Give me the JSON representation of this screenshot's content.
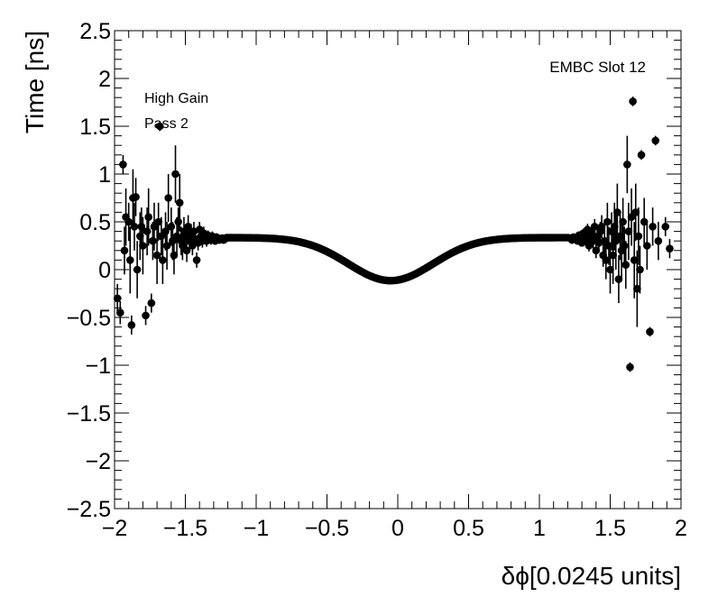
{
  "chart_data": {
    "type": "scatter",
    "xlabel": "δϕ[0.0245 units]",
    "ylabel": "Time [ns]",
    "xlim": [
      -2,
      2
    ],
    "ylim": [
      -2.5,
      2.5
    ],
    "x_ticks": [
      "−2",
      "−1.5",
      "−1",
      "−0.5",
      "0",
      "0.5",
      "1",
      "1.5",
      "2"
    ],
    "y_ticks": [
      "−2.5",
      "−2",
      "−1.5",
      "−1",
      "−0.5",
      "0",
      "0.5",
      "1",
      "1.5",
      "2",
      "2.5"
    ],
    "annotations": {
      "left_line1": "High Gain",
      "left_line2": "Pass 2",
      "right": "EMBC Slot 12"
    },
    "grid": false,
    "marker_color": "#000000",
    "points": [
      [
        -1.98,
        -0.3,
        0.15
      ],
      [
        -1.96,
        -0.45,
        0.12
      ],
      [
        -1.94,
        1.1,
        0.1
      ],
      [
        -1.93,
        0.2,
        0.25
      ],
      [
        -1.92,
        0.55,
        0.3
      ],
      [
        -1.9,
        0.5,
        0.2
      ],
      [
        -1.89,
        0.1,
        0.35
      ],
      [
        -1.88,
        -0.58,
        0.1
      ],
      [
        -1.87,
        0.75,
        0.3
      ],
      [
        -1.86,
        0.45,
        0.25
      ],
      [
        -1.85,
        0.76,
        0.2
      ],
      [
        -1.84,
        0.0,
        0.3
      ],
      [
        -1.82,
        0.35,
        0.25
      ],
      [
        -1.81,
        0.45,
        0.2
      ],
      [
        -1.8,
        0.25,
        0.3
      ],
      [
        -1.78,
        -0.48,
        0.1
      ],
      [
        -1.77,
        0.4,
        0.25
      ],
      [
        -1.76,
        0.55,
        0.3
      ],
      [
        -1.74,
        -0.35,
        0.1
      ],
      [
        -1.73,
        0.3,
        0.2
      ],
      [
        -1.72,
        0.45,
        0.25
      ],
      [
        -1.7,
        0.15,
        0.3
      ],
      [
        -1.69,
        0.5,
        0.2
      ],
      [
        -1.68,
        1.5,
        0.05
      ],
      [
        -1.67,
        0.35,
        0.2
      ],
      [
        -1.66,
        0.1,
        0.25
      ],
      [
        -1.64,
        0.4,
        0.2
      ],
      [
        -1.63,
        0.25,
        0.25
      ],
      [
        -1.62,
        0.75,
        0.25
      ],
      [
        -1.6,
        0.45,
        0.2
      ],
      [
        -1.59,
        0.3,
        0.2
      ],
      [
        -1.58,
        0.15,
        0.2
      ],
      [
        -1.57,
        1.0,
        0.3
      ],
      [
        -1.56,
        0.35,
        0.2
      ],
      [
        -1.55,
        0.5,
        0.15
      ],
      [
        -1.54,
        0.7,
        0.3
      ],
      [
        -1.53,
        0.3,
        0.15
      ],
      [
        -1.52,
        0.25,
        0.15
      ],
      [
        -1.51,
        0.4,
        0.15
      ],
      [
        -1.5,
        0.35,
        0.12
      ],
      [
        -1.49,
        0.2,
        0.12
      ],
      [
        -1.48,
        0.45,
        0.12
      ],
      [
        -1.47,
        0.3,
        0.1
      ],
      [
        -1.46,
        0.38,
        0.1
      ],
      [
        -1.45,
        0.25,
        0.1
      ],
      [
        -1.44,
        0.4,
        0.1
      ],
      [
        -1.43,
        0.32,
        0.08
      ],
      [
        -1.42,
        0.1,
        0.08
      ],
      [
        -1.41,
        0.28,
        0.08
      ],
      [
        -1.4,
        0.42,
        0.08
      ],
      [
        -1.39,
        0.35,
        0.08
      ],
      [
        -1.38,
        0.3,
        0.07
      ],
      [
        -1.37,
        0.38,
        0.07
      ],
      [
        -1.36,
        0.33,
        0.06
      ],
      [
        -1.35,
        0.3,
        0.06
      ],
      [
        -1.34,
        0.36,
        0.05
      ],
      [
        -1.33,
        0.34,
        0.05
      ],
      [
        -1.32,
        0.31,
        0.05
      ],
      [
        -1.31,
        0.35,
        0.05
      ],
      [
        -1.3,
        0.32,
        0.04
      ],
      [
        -1.29,
        0.3,
        0.04
      ],
      [
        -1.28,
        0.34,
        0.04
      ],
      [
        -1.27,
        0.33,
        0.03
      ],
      [
        -1.26,
        0.31,
        0.03
      ],
      [
        -1.25,
        0.32,
        0.03
      ],
      [
        -1.24,
        0.33,
        0.02
      ],
      [
        -1.23,
        0.31,
        0.02
      ],
      [
        -1.22,
        0.32,
        0.02
      ],
      [
        1.22,
        0.33,
        0.02
      ],
      [
        1.23,
        0.31,
        0.02
      ],
      [
        1.24,
        0.34,
        0.02
      ],
      [
        1.25,
        0.32,
        0.03
      ],
      [
        1.26,
        0.33,
        0.03
      ],
      [
        1.27,
        0.3,
        0.03
      ],
      [
        1.28,
        0.36,
        0.04
      ],
      [
        1.29,
        0.33,
        0.04
      ],
      [
        1.3,
        0.28,
        0.04
      ],
      [
        1.31,
        0.38,
        0.05
      ],
      [
        1.32,
        0.34,
        0.05
      ],
      [
        1.33,
        0.3,
        0.05
      ],
      [
        1.34,
        0.42,
        0.06
      ],
      [
        1.35,
        0.25,
        0.06
      ],
      [
        1.36,
        0.35,
        0.07
      ],
      [
        1.37,
        0.4,
        0.07
      ],
      [
        1.38,
        0.3,
        0.08
      ],
      [
        1.39,
        0.45,
        0.08
      ],
      [
        1.4,
        0.2,
        0.08
      ],
      [
        1.41,
        0.35,
        0.1
      ],
      [
        1.42,
        0.28,
        0.1
      ],
      [
        1.43,
        0.4,
        0.1
      ],
      [
        1.44,
        0.45,
        0.12
      ],
      [
        1.45,
        0.15,
        0.12
      ],
      [
        1.46,
        0.3,
        0.15
      ],
      [
        1.47,
        0.1,
        0.2
      ],
      [
        1.48,
        0.5,
        0.2
      ],
      [
        1.49,
        0.25,
        0.2
      ],
      [
        1.5,
        0.0,
        0.25
      ],
      [
        1.51,
        0.4,
        0.2
      ],
      [
        1.52,
        0.15,
        0.3
      ],
      [
        1.53,
        0.45,
        0.25
      ],
      [
        1.54,
        0.3,
        0.3
      ],
      [
        1.55,
        0.6,
        0.3
      ],
      [
        1.56,
        -0.1,
        0.25
      ],
      [
        1.57,
        0.35,
        0.25
      ],
      [
        1.58,
        0.2,
        0.3
      ],
      [
        1.59,
        0.5,
        0.25
      ],
      [
        1.6,
        0.25,
        0.2
      ],
      [
        1.61,
        0.05,
        0.25
      ],
      [
        1.62,
        1.1,
        0.3
      ],
      [
        1.63,
        0.4,
        0.3
      ],
      [
        1.64,
        -1.02,
        0.05
      ],
      [
        1.65,
        0.55,
        0.3
      ],
      [
        1.66,
        1.76,
        0.05
      ],
      [
        1.67,
        0.1,
        0.4
      ],
      [
        1.68,
        0.6,
        0.3
      ],
      [
        1.69,
        -0.2,
        0.4
      ],
      [
        1.7,
        0.35,
        0.3
      ],
      [
        1.71,
        0.0,
        0.25
      ],
      [
        1.72,
        1.2,
        0.05
      ],
      [
        1.74,
        0.5,
        0.25
      ],
      [
        1.76,
        0.25,
        0.25
      ],
      [
        1.78,
        -0.65,
        0.05
      ],
      [
        1.8,
        0.45,
        0.2
      ],
      [
        1.82,
        1.35,
        0.05
      ],
      [
        1.84,
        0.3,
        0.2
      ],
      [
        1.89,
        0.45,
        0.1
      ],
      [
        1.92,
        0.22,
        0.1
      ]
    ]
  }
}
